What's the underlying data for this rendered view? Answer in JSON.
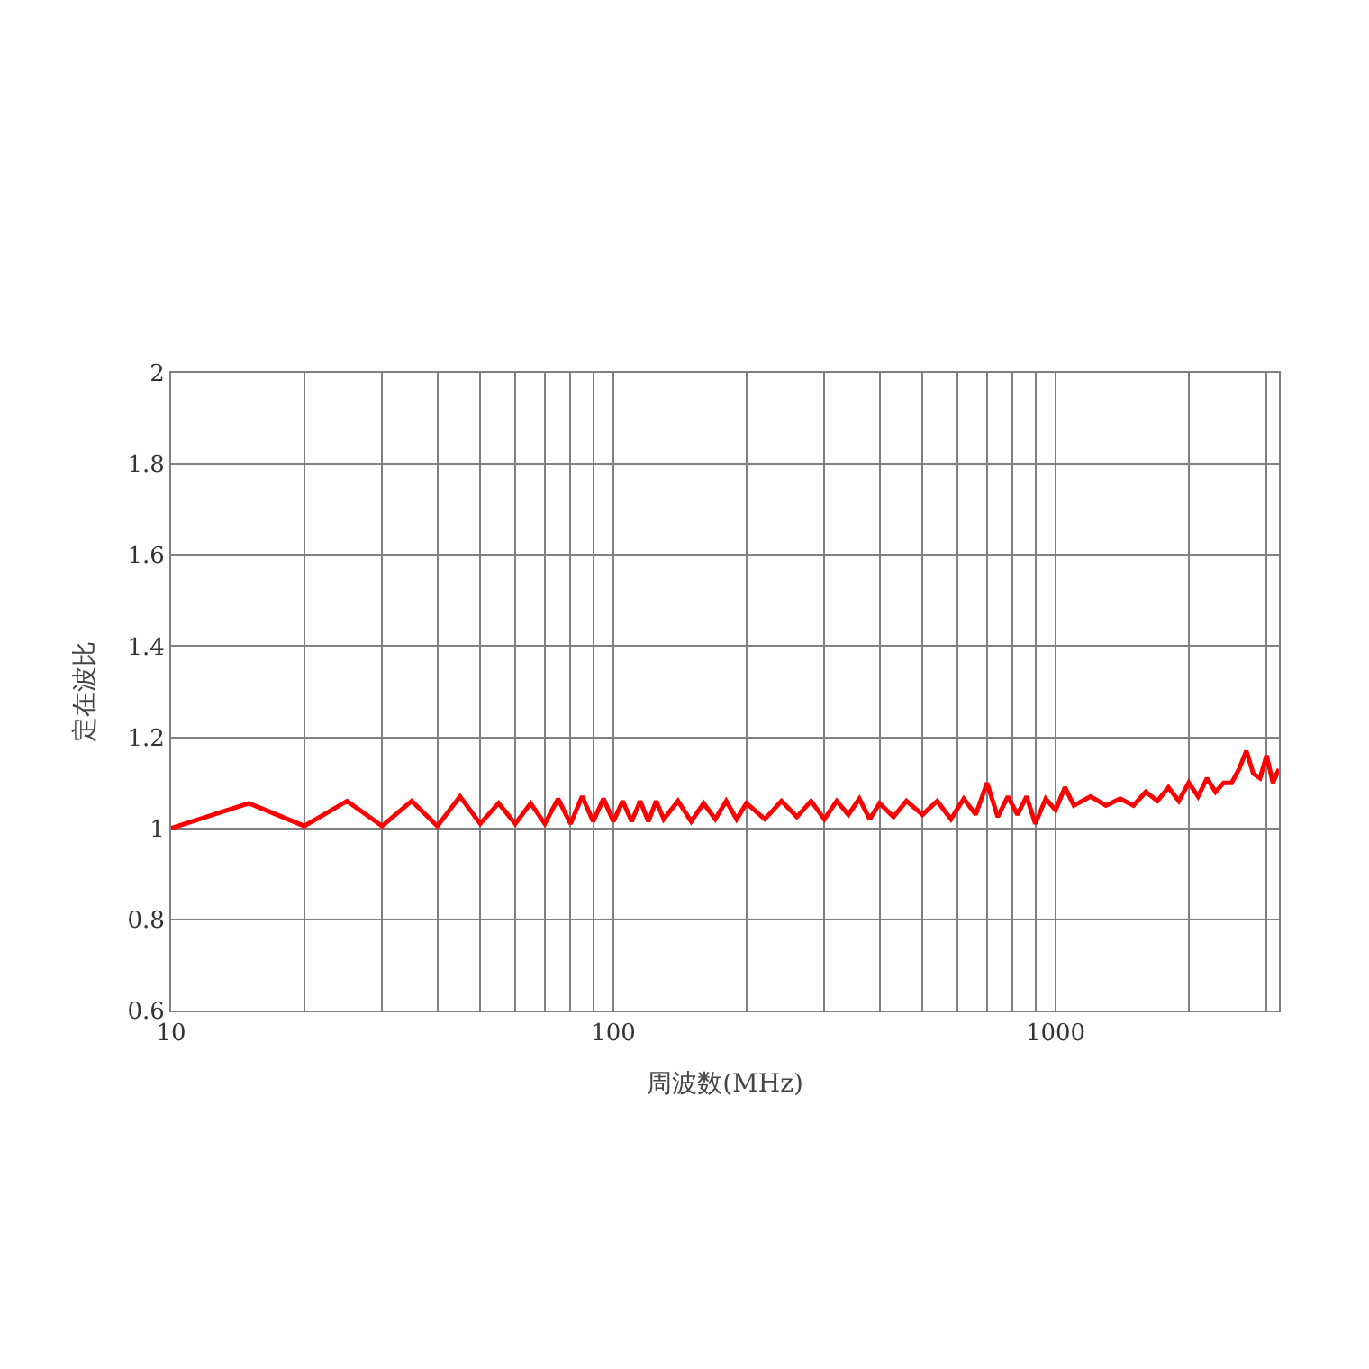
{
  "chart_data": {
    "type": "line",
    "xlabel": "周波数(MHz)",
    "ylabel": "定在波比",
    "log": "x",
    "grid": true,
    "marker": "none",
    "line_style": "solid",
    "xlim": [
      10,
      3200
    ],
    "ylim": [
      0.6,
      2
    ],
    "xticks": [
      10,
      {
        "value": 20,
        "label": null
      },
      {
        "value": 30,
        "label": null
      },
      {
        "value": 40,
        "label": null
      },
      {
        "value": 50,
        "label": null
      },
      {
        "value": 60,
        "label": null
      },
      {
        "value": 70,
        "label": null
      },
      {
        "value": 80,
        "label": null
      },
      {
        "value": 90,
        "label": null
      },
      100,
      {
        "value": 200,
        "label": null
      },
      {
        "value": 300,
        "label": null
      },
      {
        "value": 400,
        "label": null
      },
      {
        "value": 500,
        "label": null
      },
      {
        "value": 600,
        "label": null
      },
      {
        "value": 700,
        "label": null
      },
      {
        "value": 800,
        "label": null
      },
      {
        "value": 900,
        "label": null
      },
      1000,
      {
        "value": 2000,
        "label": null
      },
      {
        "value": 3000,
        "label": null
      }
    ],
    "yticks": [
      0.6,
      0.8,
      1,
      1.2,
      1.4,
      1.6,
      1.8,
      2
    ],
    "x": [
      10,
      15,
      20,
      25,
      30,
      35,
      40,
      45,
      50,
      55,
      60,
      65,
      70,
      75,
      80,
      85,
      90,
      95,
      100,
      105,
      110,
      115,
      120,
      125,
      130,
      140,
      150,
      160,
      170,
      180,
      190,
      200,
      220,
      240,
      260,
      280,
      300,
      320,
      340,
      360,
      380,
      400,
      430,
      460,
      500,
      540,
      580,
      620,
      660,
      700,
      740,
      780,
      820,
      860,
      900,
      950,
      1000,
      1050,
      1100,
      1200,
      1300,
      1400,
      1500,
      1600,
      1700,
      1800,
      1900,
      2000,
      2100,
      2200,
      2300,
      2400,
      2500,
      2600,
      2700,
      2800,
      2900,
      3000,
      3100,
      3200
    ],
    "series": [
      {
        "color": "#ff0000",
        "values": [
          1.0,
          1.055,
          1.005,
          1.06,
          1.005,
          1.06,
          1.005,
          1.07,
          1.01,
          1.055,
          1.01,
          1.055,
          1.01,
          1.065,
          1.01,
          1.07,
          1.015,
          1.065,
          1.015,
          1.06,
          1.015,
          1.06,
          1.015,
          1.06,
          1.02,
          1.06,
          1.015,
          1.055,
          1.02,
          1.06,
          1.02,
          1.055,
          1.02,
          1.06,
          1.025,
          1.06,
          1.02,
          1.06,
          1.03,
          1.065,
          1.02,
          1.055,
          1.025,
          1.06,
          1.03,
          1.06,
          1.02,
          1.065,
          1.03,
          1.1,
          1.025,
          1.07,
          1.03,
          1.07,
          1.01,
          1.065,
          1.04,
          1.09,
          1.05,
          1.07,
          1.05,
          1.065,
          1.05,
          1.08,
          1.06,
          1.09,
          1.06,
          1.1,
          1.07,
          1.11,
          1.08,
          1.1,
          1.1,
          1.13,
          1.17,
          1.12,
          1.11,
          1.16,
          1.1,
          1.13
        ]
      }
    ]
  }
}
